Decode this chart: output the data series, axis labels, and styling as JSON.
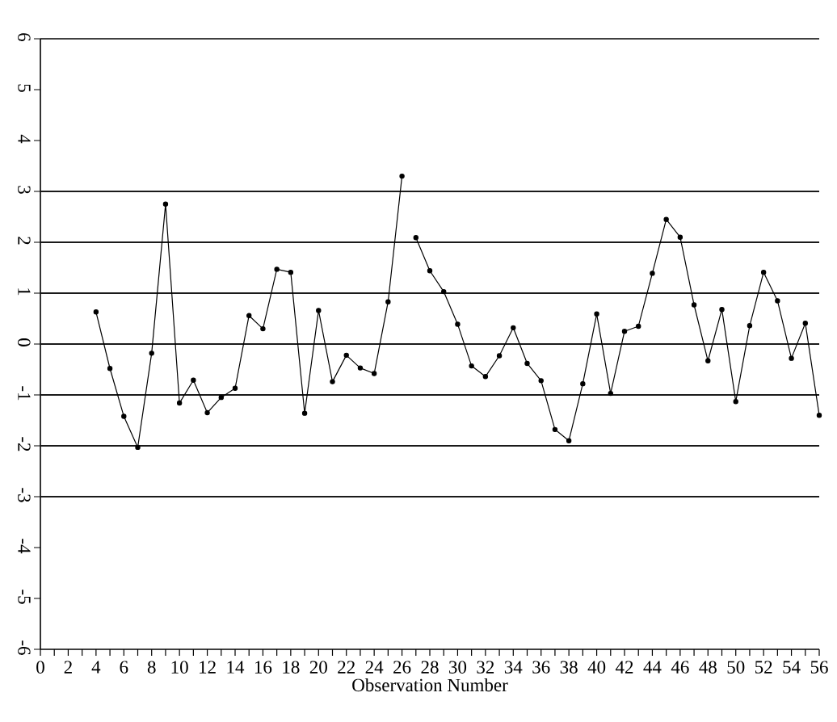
{
  "chart_data": {
    "type": "line",
    "xlabel": "Observation Number",
    "marker": "circle",
    "xlim": [
      0,
      56
    ],
    "xticks": [
      0,
      {
        "value": 1,
        "label": null
      },
      2,
      {
        "value": 3,
        "label": null
      },
      4,
      {
        "value": 5,
        "label": null
      },
      6,
      {
        "value": 7,
        "label": null
      },
      8,
      {
        "value": 9,
        "label": null
      },
      10,
      {
        "value": 11,
        "label": null
      },
      12,
      {
        "value": 13,
        "label": null
      },
      14,
      {
        "value": 15,
        "label": null
      },
      16,
      {
        "value": 17,
        "label": null
      },
      18,
      {
        "value": 19,
        "label": null
      },
      20,
      {
        "value": 21,
        "label": null
      },
      22,
      {
        "value": 23,
        "label": null
      },
      24,
      {
        "value": 25,
        "label": null
      },
      26,
      {
        "value": 27,
        "label": null
      },
      28,
      {
        "value": 29,
        "label": null
      },
      30,
      {
        "value": 31,
        "label": null
      },
      32,
      {
        "value": 33,
        "label": null
      },
      34,
      {
        "value": 35,
        "label": null
      },
      36,
      {
        "value": 37,
        "label": null
      },
      38,
      {
        "value": 39,
        "label": null
      },
      40,
      {
        "value": 41,
        "label": null
      },
      42,
      {
        "value": 43,
        "label": null
      },
      44,
      {
        "value": 45,
        "label": null
      },
      46,
      {
        "value": 47,
        "label": null
      },
      48,
      {
        "value": 49,
        "label": null
      },
      50,
      {
        "value": 51,
        "label": null
      },
      52,
      {
        "value": 53,
        "label": null
      },
      54,
      {
        "value": 55,
        "label": null
      },
      56
    ],
    "ylim": [
      -6,
      6
    ],
    "yticks": [
      -6,
      -5,
      -4,
      -3,
      -2,
      -1,
      0,
      1,
      2,
      3,
      4,
      5,
      6
    ],
    "series": [
      {
        "color": "#000000",
        "x": [
          4,
          5,
          6,
          7,
          8,
          9,
          10,
          11,
          12,
          13,
          14,
          15,
          16,
          17,
          18,
          19,
          20,
          21,
          22,
          23,
          24,
          25,
          26
        ],
        "values": [
          0.63,
          -0.48,
          -1.42,
          -2.03,
          -0.18,
          2.75,
          -1.16,
          -0.71,
          -1.35,
          -1.05,
          -0.87,
          0.56,
          0.3,
          1.47,
          1.41,
          -1.36,
          0.66,
          -0.74,
          -0.22,
          -0.47,
          -0.58,
          0.83,
          3.3
        ]
      },
      {
        "color": "#000000",
        "x": [
          27,
          28,
          29,
          30,
          31,
          32,
          33,
          34,
          35,
          36,
          37,
          38,
          39,
          40,
          41,
          42,
          43,
          44,
          45,
          46,
          47,
          48,
          49,
          50,
          51,
          52,
          53,
          54,
          55,
          56
        ],
        "values": [
          2.09,
          1.44,
          1.03,
          0.39,
          -0.43,
          -0.64,
          -0.23,
          0.32,
          -0.38,
          -0.72,
          -1.68,
          -1.9,
          -0.78,
          0.59,
          -0.97,
          0.25,
          0.35,
          1.39,
          2.45,
          2.1,
          0.77,
          -0.33,
          0.68,
          -1.13,
          0.36,
          1.41,
          0.85,
          -0.28,
          0.41,
          -1.4
        ]
      }
    ],
    "ref_lines": [
      {
        "axis": "y",
        "value": 3,
        "color": "#1a1a1a"
      },
      {
        "axis": "y",
        "value": 2,
        "color": "#1a1a1a"
      },
      {
        "axis": "y",
        "value": 1,
        "color": "#1a1a1a"
      },
      {
        "axis": "y",
        "value": 0,
        "color": "#1a1a1a"
      },
      {
        "axis": "y",
        "value": -1,
        "color": "#1a1a1a"
      },
      {
        "axis": "y",
        "value": -2,
        "color": "#1a1a1a"
      },
      {
        "axis": "y",
        "value": -3,
        "color": "#1a1a1a"
      }
    ]
  }
}
